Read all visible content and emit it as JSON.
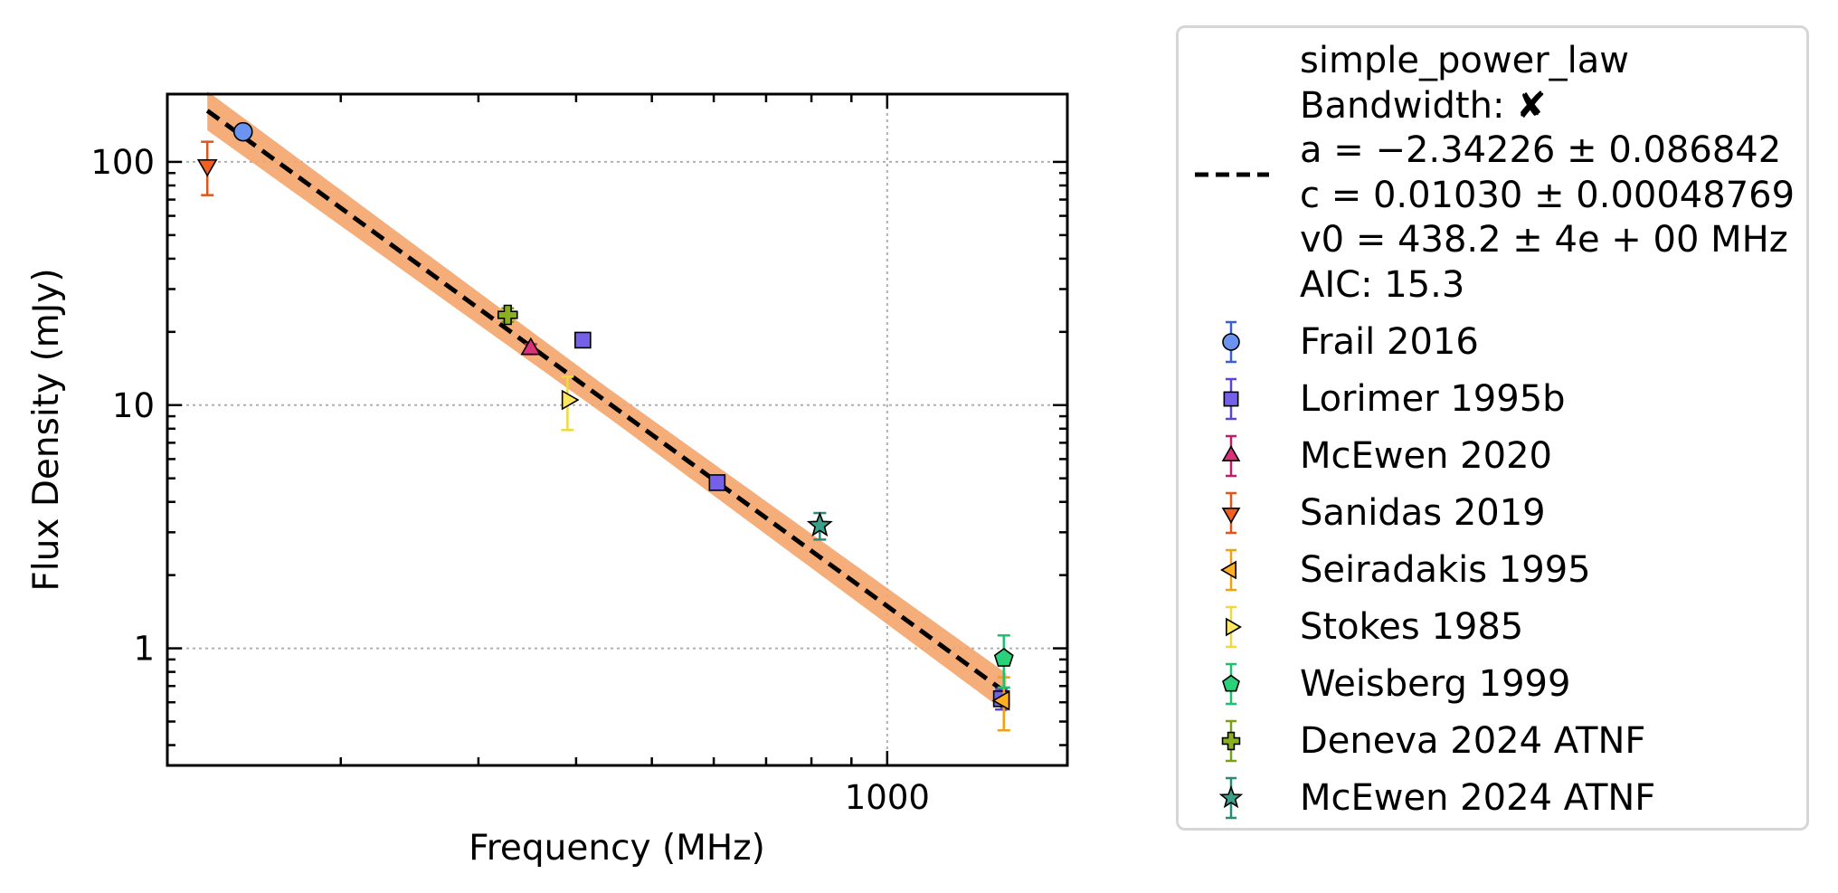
{
  "chart_data": {
    "type": "scatter",
    "title": "",
    "xlabel": "Frequency (MHz)",
    "ylabel": "Flux Density (mJy)",
    "xscale": "log",
    "yscale": "log",
    "xlim": [
      120,
      1700
    ],
    "ylim": [
      0.33,
      190
    ],
    "xticks": [
      {
        "value": 1000,
        "label": "1000"
      }
    ],
    "yticks": [
      {
        "value": 1,
        "label": "1"
      },
      {
        "value": 10,
        "label": "10"
      },
      {
        "value": 100,
        "label": "100"
      }
    ],
    "grid": true,
    "legend_position": "outside-right",
    "fit": {
      "name": "simple_power_law",
      "bandwidth_label": "Bandwidth: ✘",
      "a_label": "a = −2.34226 ± 0.086842",
      "c_label": "c = 0.01030 ± 0.00048769",
      "v0_label": "v0 = 438.2 ± 4e + 00 MHz",
      "aic_label": "AIC: 15.3",
      "a": -2.34226,
      "c": 0.0103,
      "v0": 438.2,
      "color": "#000000",
      "band_color": "#f4a46c"
    },
    "series": [
      {
        "name": "Frail 2016",
        "marker": "circle",
        "color": "#6b94f0",
        "edge": "#3a5fd0",
        "points": [
          {
            "x": 150,
            "y": 133,
            "yerr_low": 8,
            "yerr_high": 8
          }
        ]
      },
      {
        "name": "Lorimer 1995b",
        "marker": "square",
        "color": "#7560e8",
        "edge": "#5a46d0",
        "points": [
          {
            "x": 408,
            "y": 18.5,
            "yerr_low": 0.8,
            "yerr_high": 0.8
          },
          {
            "x": 606,
            "y": 4.8,
            "yerr_low": 0.3,
            "yerr_high": 0.3
          },
          {
            "x": 1400,
            "y": 0.62,
            "yerr_low": 0.06,
            "yerr_high": 0.06
          }
        ]
      },
      {
        "name": "McEwen 2020",
        "marker": "triangle-up",
        "color": "#d9327a",
        "edge": "#c01e66",
        "points": [
          {
            "x": 350,
            "y": 17.0,
            "yerr_low": 0.8,
            "yerr_high": 0.8
          }
        ]
      },
      {
        "name": "Sanidas 2019",
        "marker": "triangle-down",
        "color": "#f06020",
        "edge": "#e0551a",
        "points": [
          {
            "x": 135,
            "y": 97,
            "yerr_low": 24,
            "yerr_high": 24
          }
        ]
      },
      {
        "name": "Seiradakis 1995",
        "marker": "triangle-left",
        "color": "#ffb020",
        "edge": "#f0a010",
        "points": [
          {
            "x": 1410,
            "y": 0.61,
            "yerr_low": 0.15,
            "yerr_high": 0.15
          }
        ]
      },
      {
        "name": "Stokes 1985",
        "marker": "triangle-right",
        "color": "#ffe85a",
        "edge": "#f0d840",
        "points": [
          {
            "x": 390,
            "y": 10.5,
            "yerr_low": 2.6,
            "yerr_high": 2.6
          }
        ]
      },
      {
        "name": "Weisberg 1999",
        "marker": "pentagon",
        "color": "#2ad07a",
        "edge": "#1cc070",
        "points": [
          {
            "x": 1410,
            "y": 0.91,
            "yerr_low": 0.22,
            "yerr_high": 0.22
          }
        ]
      },
      {
        "name": "Deneva 2024 ATNF",
        "marker": "plus",
        "color": "#8ab020",
        "edge": "#7aa018",
        "points": [
          {
            "x": 327,
            "y": 23.5,
            "yerr_low": 1.5,
            "yerr_high": 1.5
          }
        ]
      },
      {
        "name": "McEwen 2024 ATNF",
        "marker": "star",
        "color": "#3aa08a",
        "edge": "#2a8a78",
        "points": [
          {
            "x": 820,
            "y": 3.2,
            "yerr_low": 0.4,
            "yerr_high": 0.4
          }
        ]
      }
    ]
  }
}
